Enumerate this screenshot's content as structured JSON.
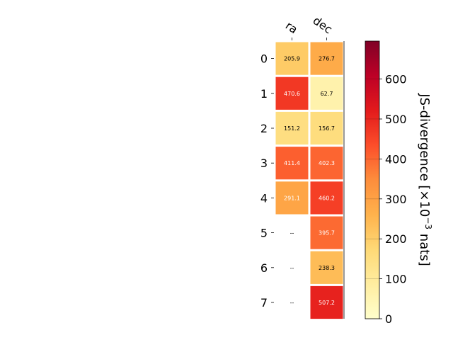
{
  "chart_data": {
    "type": "heatmap",
    "columns": [
      "ra",
      "dec"
    ],
    "rows": [
      "0",
      "1",
      "2",
      "3",
      "4",
      "5",
      "6",
      "7"
    ],
    "values": [
      [
        205.9,
        276.7
      ],
      [
        470.6,
        62.7
      ],
      [
        151.2,
        156.7
      ],
      [
        411.4,
        402.3
      ],
      [
        291.1,
        460.2
      ],
      [
        null,
        395.7
      ],
      [
        null,
        238.3
      ],
      [
        null,
        507.2
      ]
    ],
    "cell_labels": [
      [
        "205.9",
        "276.7"
      ],
      [
        "470.6",
        "62.7"
      ],
      [
        "151.2",
        "156.7"
      ],
      [
        "411.4",
        "402.3"
      ],
      [
        "291.1",
        "460.2"
      ],
      [
        "--",
        "395.7"
      ],
      [
        "--",
        "238.3"
      ],
      [
        "--",
        "507.2"
      ]
    ],
    "colorbar": {
      "label_main": "JS-divergence [×10",
      "label_exp": "−3",
      "label_tail": " nats]",
      "vmin": 0,
      "vmax": 695,
      "ticks": [
        0,
        100,
        200,
        300,
        400,
        500,
        600
      ],
      "tick_labels": [
        "0",
        "100",
        "200",
        "300",
        "400",
        "500",
        "600"
      ],
      "colormap": "YlOrRd"
    },
    "colors": {
      "dark_text_threshold": 290
    }
  }
}
